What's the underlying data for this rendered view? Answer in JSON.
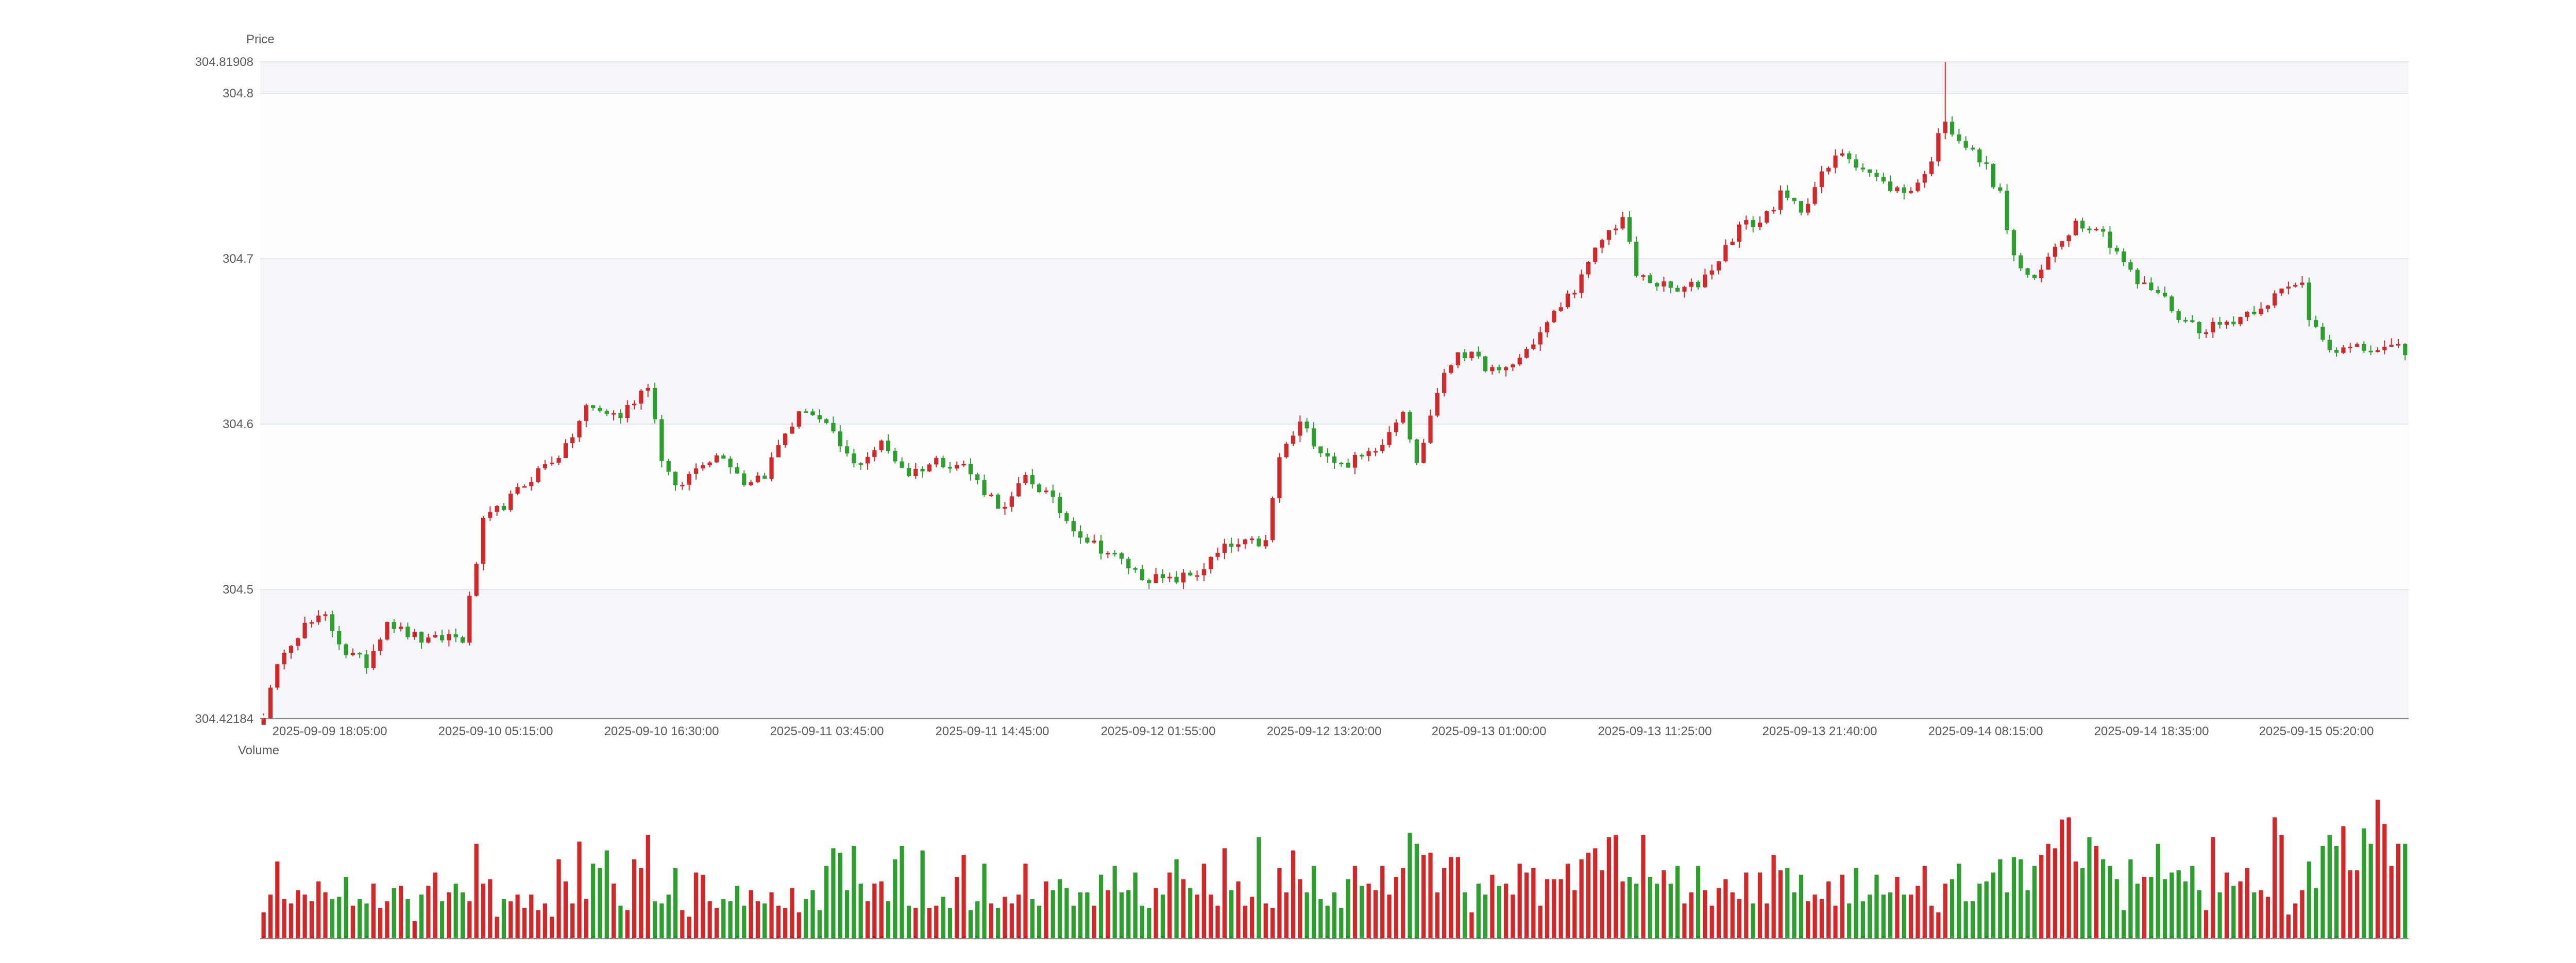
{
  "chart_data": [
    {
      "type": "candlestick",
      "ylabel": "Price",
      "y_extent_labels": [
        "304.81908",
        "304.42184"
      ],
      "y_ticks": [
        "304.8",
        "304.7",
        "304.6",
        "304.5"
      ],
      "ylim": [
        304.42184,
        304.81908
      ],
      "x_tick_labels": [
        "2025-09-09 18:05:00",
        "2025-09-10 05:15:00",
        "2025-09-10 16:30:00",
        "2025-09-11 03:45:00",
        "2025-09-11 14:45:00",
        "2025-09-12 01:55:00",
        "2025-09-12 13:20:00",
        "2025-09-13 01:00:00",
        "2025-09-13 11:25:00",
        "2025-09-13 21:40:00",
        "2025-09-14 08:15:00",
        "2025-09-14 18:35:00",
        "2025-09-15 05:20:00"
      ],
      "colors": {
        "up": "#d62728",
        "down": "#2ca02c",
        "band": "#f5f6fa",
        "grid": "#e3e5ec"
      },
      "anchors": [
        [
          0,
          304.425
        ],
        [
          3,
          304.465
        ],
        [
          6,
          304.478
        ],
        [
          9,
          304.483
        ],
        [
          12,
          304.462
        ],
        [
          15,
          304.455
        ],
        [
          18,
          304.482
        ],
        [
          20,
          304.475
        ],
        [
          24,
          304.468
        ],
        [
          27,
          304.472
        ],
        [
          29,
          304.47
        ],
        [
          32,
          304.54
        ],
        [
          36,
          304.555
        ],
        [
          40,
          304.572
        ],
        [
          44,
          304.585
        ],
        [
          47,
          304.61
        ],
        [
          52,
          304.605
        ],
        [
          56,
          304.625
        ],
        [
          58,
          304.58
        ],
        [
          60,
          304.56
        ],
        [
          64,
          304.578
        ],
        [
          67,
          304.582
        ],
        [
          70,
          304.565
        ],
        [
          73,
          304.57
        ],
        [
          76,
          304.595
        ],
        [
          79,
          304.61
        ],
        [
          82,
          304.598
        ],
        [
          86,
          304.575
        ],
        [
          90,
          304.588
        ],
        [
          94,
          304.57
        ],
        [
          98,
          304.578
        ],
        [
          102,
          304.575
        ],
        [
          105,
          304.56
        ],
        [
          108,
          304.548
        ],
        [
          111,
          304.568
        ],
        [
          114,
          304.558
        ],
        [
          117,
          304.542
        ],
        [
          120,
          304.53
        ],
        [
          124,
          304.52
        ],
        [
          128,
          304.508
        ],
        [
          132,
          304.505
        ],
        [
          136,
          304.51
        ],
        [
          140,
          304.525
        ],
        [
          144,
          304.528
        ],
        [
          146,
          304.528
        ],
        [
          148,
          304.58
        ],
        [
          151,
          304.6
        ],
        [
          154,
          304.585
        ],
        [
          157,
          304.575
        ],
        [
          160,
          304.58
        ],
        [
          163,
          304.59
        ],
        [
          166,
          304.61
        ],
        [
          168,
          304.575
        ],
        [
          171,
          304.62
        ],
        [
          174,
          304.645
        ],
        [
          177,
          304.638
        ],
        [
          180,
          304.63
        ],
        [
          183,
          304.64
        ],
        [
          186,
          304.655
        ],
        [
          189,
          304.672
        ],
        [
          192,
          304.688
        ],
        [
          195,
          304.712
        ],
        [
          198,
          304.725
        ],
        [
          200,
          304.69
        ],
        [
          203,
          304.685
        ],
        [
          206,
          304.68
        ],
        [
          209,
          304.685
        ],
        [
          212,
          304.7
        ],
        [
          215,
          304.72
        ],
        [
          218,
          304.722
        ],
        [
          221,
          304.738
        ],
        [
          224,
          304.73
        ],
        [
          227,
          304.75
        ],
        [
          230,
          304.765
        ],
        [
          233,
          304.755
        ],
        [
          236,
          304.745
        ],
        [
          239,
          304.74
        ],
        [
          242,
          304.75
        ],
        [
          245,
          304.785
        ],
        [
          246,
          304.778
        ],
        [
          248,
          304.768
        ],
        [
          251,
          304.755
        ],
        [
          253,
          304.738
        ],
        [
          255,
          304.7
        ],
        [
          258,
          304.685
        ],
        [
          261,
          304.708
        ],
        [
          264,
          304.722
        ],
        [
          267,
          304.72
        ],
        [
          270,
          304.705
        ],
        [
          273,
          304.685
        ],
        [
          276,
          304.68
        ],
        [
          279,
          304.665
        ],
        [
          282,
          304.658
        ],
        [
          285,
          304.66
        ],
        [
          288,
          304.665
        ],
        [
          291,
          304.672
        ],
        [
          294,
          304.68
        ],
        [
          297,
          304.685
        ],
        [
          298,
          304.665
        ],
        [
          301,
          304.648
        ],
        [
          302,
          304.645
        ]
      ],
      "volume": {
        "ylabel": "Volume",
        "values": [
          12,
          20,
          35,
          18,
          16,
          22,
          20,
          17,
          26,
          21,
          18,
          19,
          28,
          15,
          18,
          16,
          25,
          14,
          17,
          23,
          24,
          18,
          8,
          20,
          24,
          30,
          17,
          21,
          25,
          21,
          17,
          43,
          25,
          27,
          10,
          18,
          17,
          20,
          14,
          20,
          13,
          16,
          10,
          36,
          26,
          16,
          44,
          18,
          34,
          32,
          40,
          25,
          15,
          13,
          36,
          32,
          47,
          17,
          16,
          20,
          32,
          13,
          10,
          30,
          29,
          17,
          14,
          18,
          17,
          24,
          15,
          22,
          17,
          16,
          21,
          15,
          14,
          23,
          12,
          18,
          22,
          13,
          33,
          41,
          39,
          22,
          42,
          25,
          17,
          25,
          26,
          17,
          36,
          42,
          15,
          14,
          40,
          14,
          15,
          19,
          14,
          28,
          38,
          13,
          17,
          34,
          16,
          14,
          19,
          16,
          20,
          34,
          18,
          15,
          26,
          22,
          27,
          23,
          15,
          21,
          21,
          15,
          29,
          22,
          33,
          21,
          22,
          30,
          15,
          14,
          23,
          20,
          30,
          36,
          27,
          23,
          20,
          34,
          20,
          15,
          41,
          22,
          26,
          15,
          19,
          46,
          16,
          14,
          32,
          21,
          40,
          27,
          21,
          33,
          18,
          15,
          21,
          14,
          27,
          33,
          24,
          25,
          22,
          33,
          20,
          28,
          32,
          48,
          43,
          38,
          39,
          21,
          32,
          37,
          37,
          21,
          12,
          25,
          20,
          29,
          24,
          25,
          20,
          34,
          30,
          32,
          15,
          27,
          27,
          27,
          34,
          22,
          36,
          39,
          41,
          31,
          46,
          47,
          26,
          28,
          25,
          47,
          28,
          25,
          31,
          25,
          33,
          16,
          21,
          33,
          22,
          15,
          23,
          27,
          21,
          18,
          30,
          16,
          30,
          16,
          38,
          31,
          32,
          21,
          29,
          17,
          20,
          18,
          26,
          15,
          29,
          16,
          32,
          17,
          20,
          29,
          20,
          21,
          28,
          20,
          20,
          24,
          33,
          15,
          12,
          25,
          27,
          34,
          17,
          17,
          25,
          26,
          30,
          36,
          21,
          37,
          36,
          22,
          33,
          38,
          43,
          41,
          54,
          55,
          35,
          32,
          46,
          42,
          36,
          33,
          27,
          13,
          36,
          25,
          28,
          28,
          43,
          27,
          30,
          31,
          26,
          33,
          22,
          13,
          46,
          21,
          30,
          24,
          26,
          32,
          21,
          22,
          19,
          55,
          47,
          11,
          16,
          22,
          35,
          23,
          42,
          47,
          42,
          51,
          31,
          31,
          50,
          43,
          63,
          52,
          33,
          43,
          43
        ]
      }
    }
  ]
}
